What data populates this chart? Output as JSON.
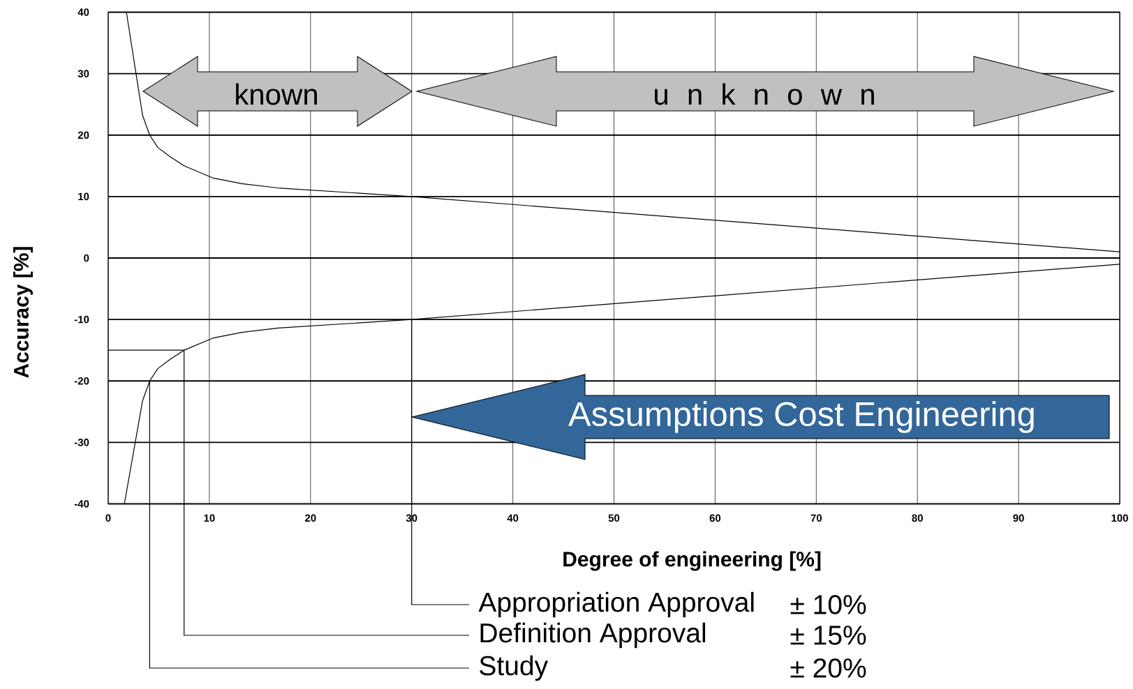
{
  "chart_data": {
    "type": "line",
    "xlabel": "Degree of engineering [%]",
    "ylabel": "Accuracy [%]",
    "xlim": [
      0,
      100
    ],
    "ylim": [
      -40,
      40
    ],
    "xticks": [
      0,
      10,
      20,
      30,
      40,
      50,
      60,
      70,
      80,
      90,
      100
    ],
    "yticks": [
      -40,
      -30,
      -20,
      -10,
      0,
      10,
      20,
      30,
      40
    ],
    "grid": true,
    "marker": "none",
    "line_style": "solid",
    "series": [
      {
        "color": "#000000",
        "x": [
          0,
          1.8,
          3.4,
          4.1,
          4.9,
          6.1,
          7.5,
          10.4,
          13.2,
          16.8,
          30,
          100
        ],
        "values": [
          40,
          40,
          23.2,
          20,
          18,
          16.5,
          15,
          13,
          12.1,
          11.4,
          10,
          1
        ]
      },
      {
        "color": "#000000",
        "x": [
          0,
          1.6,
          3.4,
          4.1,
          4.9,
          6.1,
          7.5,
          10.4,
          13.2,
          16.8,
          30,
          100
        ],
        "values": [
          -40,
          -40,
          -23.2,
          -20,
          -18,
          -16.5,
          -15,
          -13,
          -12.1,
          -11.4,
          -10,
          -1
        ]
      },
      {
        "color": "#000000",
        "x": [
          0,
          7.5
        ],
        "values": [
          -15,
          -15
        ]
      }
    ],
    "annotations": [
      "known",
      "u n k n o w n",
      "Assumptions Cost Engineering",
      {
        "text": "Appropriation Approval",
        "x": 30,
        "y": -10
      },
      "± 10%",
      {
        "text": "Definition Approval",
        "x": 7.5,
        "y": -15
      },
      "± 15%",
      {
        "text": "Study",
        "x": 4.1,
        "y": -20
      },
      "± 20%"
    ]
  }
}
